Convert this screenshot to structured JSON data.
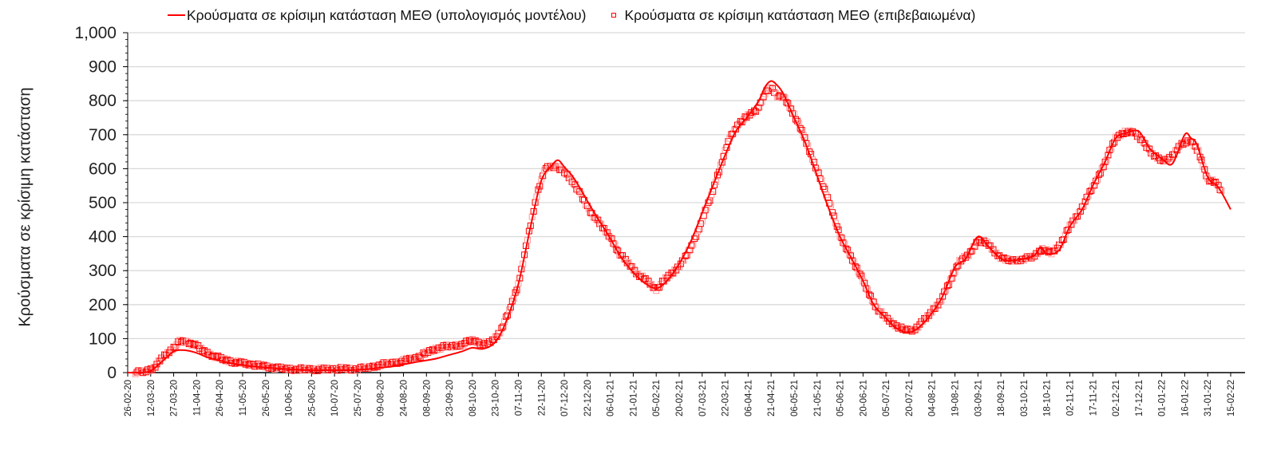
{
  "chart_data": {
    "type": "line",
    "title": "",
    "xlabel": "",
    "ylabel": "Κρούσματα σε κρίσιμη κατάσταση",
    "ylim": [
      0,
      1000
    ],
    "y_ticks": [
      "0",
      "100",
      "200",
      "300",
      "400",
      "500",
      "600",
      "700",
      "800",
      "900",
      "1,000"
    ],
    "y_minor_step": 20,
    "grid": true,
    "legend_position": "top",
    "x_tick_labels": [
      "26-02-20",
      "12-03-20",
      "27-03-20",
      "11-04-20",
      "26-04-20",
      "11-05-20",
      "26-05-20",
      "10-06-20",
      "25-06-20",
      "10-07-20",
      "25-07-20",
      "09-08-20",
      "24-08-20",
      "08-09-20",
      "23-09-20",
      "08-10-20",
      "23-10-20",
      "07-11-20",
      "22-11-20",
      "07-12-20",
      "22-12-20",
      "06-01-21",
      "21-01-21",
      "05-02-21",
      "20-02-21",
      "07-03-21",
      "22-03-21",
      "06-04-21",
      "21-04-21",
      "06-05-21",
      "21-05-21",
      "05-06-21",
      "20-06-21",
      "05-07-21",
      "20-07-21",
      "04-08-21",
      "19-08-21",
      "03-09-21",
      "18-09-21",
      "03-10-21",
      "18-10-21",
      "02-11-21",
      "17-11-21",
      "02-12-21",
      "17-12-21",
      "01-01-22",
      "16-01-22",
      "31-01-22",
      "15-02-22"
    ],
    "series": [
      {
        "name": "Κρούσματα σε κρίσιμη κατάσταση ΜΕΘ (υπολογισμός μοντέλου)",
        "style": "line",
        "color": "#ff0000",
        "points": [
          [
            "26-02-20",
            0
          ],
          [
            "05-03-20",
            0
          ],
          [
            "12-03-20",
            5
          ],
          [
            "20-03-20",
            35
          ],
          [
            "27-03-20",
            62
          ],
          [
            "03-04-20",
            66
          ],
          [
            "11-04-20",
            58
          ],
          [
            "18-04-20",
            45
          ],
          [
            "26-04-20",
            35
          ],
          [
            "03-05-20",
            28
          ],
          [
            "11-05-20",
            22
          ],
          [
            "18-05-20",
            18
          ],
          [
            "26-05-20",
            15
          ],
          [
            "03-06-20",
            12
          ],
          [
            "10-06-20",
            10
          ],
          [
            "18-06-20",
            8
          ],
          [
            "25-06-20",
            7
          ],
          [
            "03-07-20",
            7
          ],
          [
            "10-07-20",
            7
          ],
          [
            "18-07-20",
            7
          ],
          [
            "25-07-20",
            8
          ],
          [
            "01-08-20",
            10
          ],
          [
            "09-08-20",
            14
          ],
          [
            "16-08-20",
            18
          ],
          [
            "24-08-20",
            24
          ],
          [
            "31-08-20",
            30
          ],
          [
            "08-09-20",
            36
          ],
          [
            "15-09-20",
            42
          ],
          [
            "23-09-20",
            52
          ],
          [
            "01-10-20",
            62
          ],
          [
            "08-10-20",
            73
          ],
          [
            "15-10-20",
            70
          ],
          [
            "23-10-20",
            90
          ],
          [
            "30-10-20",
            150
          ],
          [
            "07-11-20",
            260
          ],
          [
            "15-11-20",
            430
          ],
          [
            "22-11-20",
            565
          ],
          [
            "29-11-20",
            610
          ],
          [
            "03-12-20",
            625
          ],
          [
            "07-12-20",
            605
          ],
          [
            "12-12-20",
            580
          ],
          [
            "17-12-20",
            545
          ],
          [
            "22-12-20",
            505
          ],
          [
            "28-12-20",
            460
          ],
          [
            "06-01-21",
            395
          ],
          [
            "13-01-21",
            340
          ],
          [
            "21-01-21",
            295
          ],
          [
            "28-01-21",
            265
          ],
          [
            "05-02-21",
            248
          ],
          [
            "12-02-21",
            270
          ],
          [
            "20-02-21",
            320
          ],
          [
            "28-02-21",
            390
          ],
          [
            "07-03-21",
            470
          ],
          [
            "14-03-21",
            550
          ],
          [
            "22-03-21",
            640
          ],
          [
            "29-03-21",
            710
          ],
          [
            "06-04-21",
            755
          ],
          [
            "13-04-21",
            800
          ],
          [
            "17-04-21",
            840
          ],
          [
            "21-04-21",
            858
          ],
          [
            "25-04-21",
            845
          ],
          [
            "29-04-21",
            820
          ],
          [
            "06-05-21",
            750
          ],
          [
            "13-05-21",
            680
          ],
          [
            "21-05-21",
            580
          ],
          [
            "28-05-21",
            490
          ],
          [
            "05-06-21",
            400
          ],
          [
            "12-06-21",
            340
          ],
          [
            "20-06-21",
            270
          ],
          [
            "27-06-21",
            200
          ],
          [
            "05-07-21",
            160
          ],
          [
            "12-07-21",
            130
          ],
          [
            "20-07-21",
            118
          ],
          [
            "27-07-21",
            135
          ],
          [
            "04-08-21",
            175
          ],
          [
            "11-08-21",
            225
          ],
          [
            "19-08-21",
            310
          ],
          [
            "26-08-21",
            335
          ],
          [
            "03-09-21",
            400
          ],
          [
            "10-09-21",
            370
          ],
          [
            "18-09-21",
            335
          ],
          [
            "25-09-21",
            330
          ],
          [
            "03-10-21",
            335
          ],
          [
            "10-10-21",
            345
          ],
          [
            "14-10-21",
            370
          ],
          [
            "18-10-21",
            350
          ],
          [
            "26-10-21",
            360
          ],
          [
            "02-11-21",
            430
          ],
          [
            "10-11-21",
            480
          ],
          [
            "17-11-21",
            550
          ],
          [
            "25-11-21",
            620
          ],
          [
            "02-12-21",
            690
          ],
          [
            "09-12-21",
            705
          ],
          [
            "17-12-21",
            710
          ],
          [
            "24-12-21",
            660
          ],
          [
            "01-01-22",
            630
          ],
          [
            "08-01-22",
            615
          ],
          [
            "16-01-22",
            700
          ],
          [
            "20-01-22",
            690
          ],
          [
            "24-01-22",
            670
          ],
          [
            "31-01-22",
            575
          ],
          [
            "07-02-22",
            545
          ],
          [
            "15-02-22",
            480
          ]
        ]
      },
      {
        "name": "Κρούσματα σε κρίσιμη κατάσταση ΜΕΘ (επιβεβαιωμένα)",
        "style": "marker-square-hollow",
        "color": "#ff0000",
        "points": [
          [
            "02-03-20",
            1
          ],
          [
            "08-03-20",
            2
          ],
          [
            "14-03-20",
            15
          ],
          [
            "20-03-20",
            45
          ],
          [
            "26-03-20",
            70
          ],
          [
            "31-03-20",
            91
          ],
          [
            "05-04-20",
            90
          ],
          [
            "11-04-20",
            78
          ],
          [
            "17-04-20",
            60
          ],
          [
            "23-04-20",
            48
          ],
          [
            "29-04-20",
            38
          ],
          [
            "05-05-20",
            32
          ],
          [
            "11-05-20",
            28
          ],
          [
            "17-05-20",
            24
          ],
          [
            "23-05-20",
            20
          ],
          [
            "29-05-20",
            16
          ],
          [
            "04-06-20",
            12
          ],
          [
            "10-06-20",
            11
          ],
          [
            "16-06-20",
            10
          ],
          [
            "22-06-20",
            10
          ],
          [
            "28-06-20",
            10
          ],
          [
            "04-07-20",
            10
          ],
          [
            "10-07-20",
            11
          ],
          [
            "16-07-20",
            11
          ],
          [
            "22-07-20",
            10
          ],
          [
            "28-07-20",
            12
          ],
          [
            "03-08-20",
            16
          ],
          [
            "09-08-20",
            24
          ],
          [
            "15-08-20",
            27
          ],
          [
            "21-08-20",
            32
          ],
          [
            "27-08-20",
            38
          ],
          [
            "02-09-20",
            45
          ],
          [
            "08-09-20",
            58
          ],
          [
            "14-09-20",
            70
          ],
          [
            "20-09-20",
            76
          ],
          [
            "26-09-20",
            78
          ],
          [
            "02-10-20",
            85
          ],
          [
            "08-10-20",
            95
          ],
          [
            "14-10-20",
            86
          ],
          [
            "20-10-20",
            88
          ],
          [
            "26-10-20",
            120
          ],
          [
            "01-11-20",
            180
          ],
          [
            "07-11-20",
            260
          ],
          [
            "13-11-20",
            390
          ],
          [
            "19-11-20",
            520
          ],
          [
            "24-11-20",
            600
          ],
          [
            "29-11-20",
            605
          ],
          [
            "03-12-20",
            605
          ],
          [
            "08-12-20",
            585
          ],
          [
            "13-12-20",
            560
          ],
          [
            "18-12-20",
            520
          ],
          [
            "23-12-20",
            480
          ],
          [
            "28-12-20",
            450
          ],
          [
            "06-01-21",
            400
          ],
          [
            "12-01-21",
            350
          ],
          [
            "18-01-21",
            320
          ],
          [
            "24-01-21",
            290
          ],
          [
            "30-01-21",
            270
          ],
          [
            "05-02-21",
            245
          ],
          [
            "11-02-21",
            275
          ],
          [
            "17-02-21",
            300
          ],
          [
            "23-02-21",
            330
          ],
          [
            "01-03-21",
            380
          ],
          [
            "07-03-21",
            450
          ],
          [
            "13-03-21",
            520
          ],
          [
            "19-03-21",
            610
          ],
          [
            "25-03-21",
            690
          ],
          [
            "31-03-21",
            735
          ],
          [
            "06-04-21",
            755
          ],
          [
            "12-04-21",
            775
          ],
          [
            "17-04-21",
            820
          ],
          [
            "21-04-21",
            840
          ],
          [
            "25-04-21",
            815
          ],
          [
            "30-04-21",
            805
          ],
          [
            "06-05-21",
            760
          ],
          [
            "12-05-21",
            700
          ],
          [
            "18-05-21",
            630
          ],
          [
            "24-05-21",
            560
          ],
          [
            "30-05-21",
            490
          ],
          [
            "05-06-21",
            400
          ],
          [
            "11-06-21",
            350
          ],
          [
            "17-06-21",
            300
          ],
          [
            "23-06-21",
            240
          ],
          [
            "29-06-21",
            190
          ],
          [
            "05-07-21",
            160
          ],
          [
            "11-07-21",
            140
          ],
          [
            "17-07-21",
            125
          ],
          [
            "23-07-21",
            125
          ],
          [
            "29-07-21",
            150
          ],
          [
            "04-08-21",
            180
          ],
          [
            "10-08-21",
            215
          ],
          [
            "16-08-21",
            270
          ],
          [
            "22-08-21",
            330
          ],
          [
            "28-08-21",
            345
          ],
          [
            "03-09-21",
            390
          ],
          [
            "09-09-21",
            380
          ],
          [
            "15-09-21",
            350
          ],
          [
            "21-09-21",
            330
          ],
          [
            "27-09-21",
            330
          ],
          [
            "03-10-21",
            335
          ],
          [
            "09-10-21",
            340
          ],
          [
            "15-10-21",
            365
          ],
          [
            "21-10-21",
            350
          ],
          [
            "27-10-21",
            380
          ],
          [
            "02-11-21",
            430
          ],
          [
            "08-11-21",
            470
          ],
          [
            "14-11-21",
            520
          ],
          [
            "20-11-21",
            570
          ],
          [
            "26-11-21",
            630
          ],
          [
            "02-12-21",
            690
          ],
          [
            "08-12-21",
            710
          ],
          [
            "14-12-21",
            705
          ],
          [
            "20-12-21",
            680
          ],
          [
            "26-12-21",
            640
          ],
          [
            "01-01-22",
            625
          ],
          [
            "07-01-22",
            630
          ],
          [
            "13-01-22",
            670
          ],
          [
            "19-01-22",
            685
          ],
          [
            "25-01-22",
            650
          ],
          [
            "31-01-22",
            570
          ],
          [
            "06-02-22",
            555
          ],
          [
            "10-02-22",
            525
          ]
        ]
      }
    ]
  },
  "legend": {
    "items": [
      {
        "label": "Κρούσματα σε κρίσιμη κατάσταση ΜΕΘ (υπολογισμός μοντέλου)",
        "symbol": "line-icon"
      },
      {
        "label": "Κρούσματα σε κρίσιμη κατάσταση ΜΕΘ (επιβεβαιωμένα)",
        "symbol": "square-marker-icon"
      }
    ]
  },
  "axes": {
    "y_title": "Κρούσματα σε κρίσιμη κατάσταση"
  },
  "colors": {
    "series": "#ff0000",
    "marker_faded": "#ff9a9a",
    "grid": "#d9d9d9",
    "axis": "#000000",
    "tick_text": "#222222"
  }
}
